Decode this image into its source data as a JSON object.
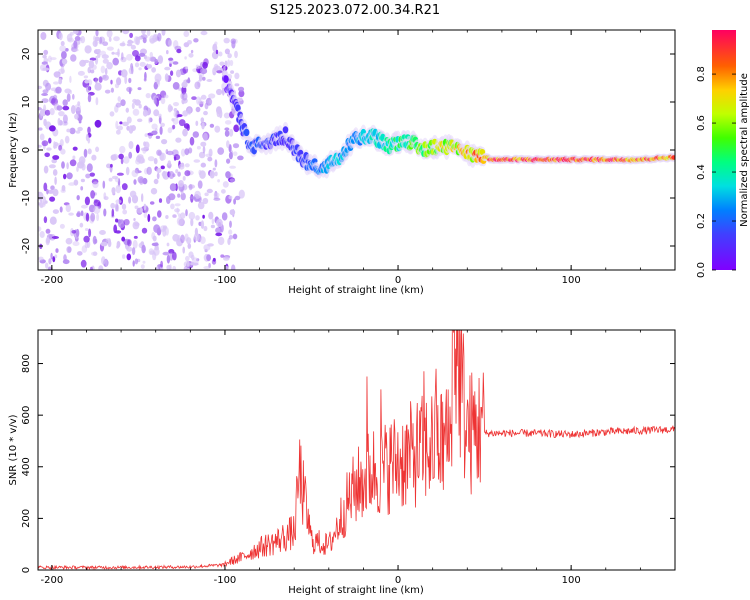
{
  "title": "S125.2023.072.00.34.R21",
  "chart_data": [
    {
      "type": "heatmap",
      "xlabel": "Height of straight line (km)",
      "ylabel": "Frequency (Hz)",
      "xlim": [
        -208,
        160
      ],
      "ylim": [
        -25,
        25
      ],
      "x_ticks": [
        -200,
        -100,
        0,
        100
      ],
      "y_ticks": [
        -20,
        -10,
        0,
        10,
        20
      ],
      "colorbar": {
        "label": "Normalized spectral amplitude",
        "range": [
          0,
          0.98
        ],
        "ticks": [
          0.0,
          0.2,
          0.4,
          0.6,
          0.8
        ],
        "colormap": "rainbow (violet → blue → cyan → green → yellow → red)"
      },
      "ridge": [
        {
          "x": -100,
          "y": 15,
          "amp": 0.05
        },
        {
          "x": -95,
          "y": 10,
          "amp": 0.1
        },
        {
          "x": -90,
          "y": 5,
          "amp": 0.15
        },
        {
          "x": -85,
          "y": 0,
          "amp": 0.18
        },
        {
          "x": -75,
          "y": 2,
          "amp": 0.15
        },
        {
          "x": -65,
          "y": 3,
          "amp": 0.12
        },
        {
          "x": -55,
          "y": -2,
          "amp": 0.15
        },
        {
          "x": -45,
          "y": -4,
          "amp": 0.25
        },
        {
          "x": -35,
          "y": -2,
          "amp": 0.3
        },
        {
          "x": -25,
          "y": 2,
          "amp": 0.25
        },
        {
          "x": -15,
          "y": 3,
          "amp": 0.35
        },
        {
          "x": -5,
          "y": 1,
          "amp": 0.4
        },
        {
          "x": 5,
          "y": 2,
          "amp": 0.45
        },
        {
          "x": 15,
          "y": 0,
          "amp": 0.55
        },
        {
          "x": 25,
          "y": 1,
          "amp": 0.6
        },
        {
          "x": 35,
          "y": 0,
          "amp": 0.65
        },
        {
          "x": 45,
          "y": -1,
          "amp": 0.75
        },
        {
          "x": 55,
          "y": -2,
          "amp": 0.9
        },
        {
          "x": 80,
          "y": -2,
          "amp": 0.85
        },
        {
          "x": 110,
          "y": -2,
          "amp": 0.9
        },
        {
          "x": 140,
          "y": -2,
          "amp": 0.85
        },
        {
          "x": 160,
          "y": -1.5,
          "amp": 0.8
        }
      ]
    },
    {
      "type": "line",
      "xlabel": "Height of straight line (km)",
      "ylabel": "SNR (10 * v/v)",
      "xlim": [
        -208,
        160
      ],
      "ylim": [
        0,
        930
      ],
      "x_ticks": [
        -200,
        -100,
        0,
        100
      ],
      "y_ticks": [
        0,
        200,
        400,
        600,
        800
      ],
      "series": [
        {
          "color": "#ee3333",
          "points": [
            {
              "x": -208,
              "y": 10
            },
            {
              "x": -160,
              "y": 10
            },
            {
              "x": -120,
              "y": 12
            },
            {
              "x": -100,
              "y": 20
            },
            {
              "x": -90,
              "y": 40
            },
            {
              "x": -80,
              "y": 70
            },
            {
              "x": -70,
              "y": 90
            },
            {
              "x": -60,
              "y": 120
            },
            {
              "x": -57,
              "y": 360
            },
            {
              "x": -50,
              "y": 110
            },
            {
              "x": -40,
              "y": 90
            },
            {
              "x": -35,
              "y": 160
            },
            {
              "x": -30,
              "y": 240
            },
            {
              "x": -25,
              "y": 300
            },
            {
              "x": -20,
              "y": 330
            },
            {
              "x": -15,
              "y": 370
            },
            {
              "x": -10,
              "y": 360
            },
            {
              "x": -5,
              "y": 390
            },
            {
              "x": 0,
              "y": 400
            },
            {
              "x": 10,
              "y": 430
            },
            {
              "x": 20,
              "y": 460
            },
            {
              "x": 30,
              "y": 470
            },
            {
              "x": 32,
              "y": 920
            },
            {
              "x": 40,
              "y": 500
            },
            {
              "x": 50,
              "y": 530
            },
            {
              "x": 60,
              "y": 530
            },
            {
              "x": 80,
              "y": 530
            },
            {
              "x": 100,
              "y": 525
            },
            {
              "x": 120,
              "y": 535
            },
            {
              "x": 140,
              "y": 540
            },
            {
              "x": 160,
              "y": 545
            }
          ],
          "spikes": [
            {
              "x": -18,
              "y": 750
            },
            {
              "x": -10,
              "y": 700
            },
            {
              "x": 15,
              "y": 770
            },
            {
              "x": 22,
              "y": 780
            },
            {
              "x": 28,
              "y": 700
            },
            {
              "x": 32,
              "y": 920
            },
            {
              "x": 40,
              "y": 660
            },
            {
              "x": 48,
              "y": 630
            }
          ]
        }
      ]
    }
  ]
}
